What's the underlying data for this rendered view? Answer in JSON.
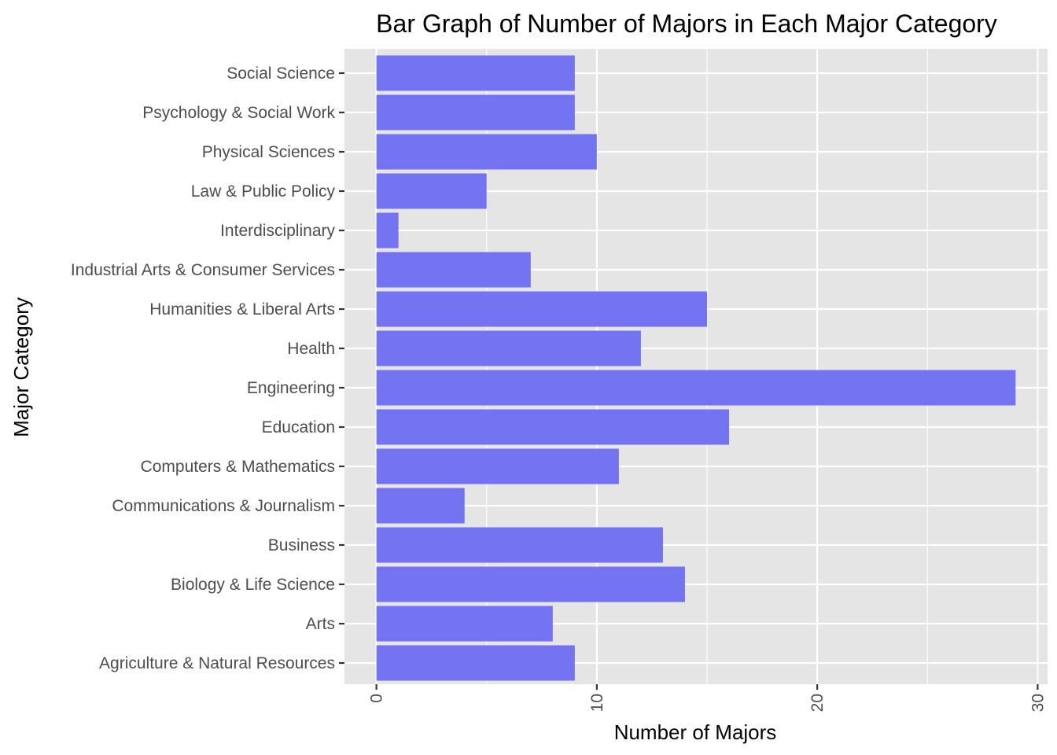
{
  "chart_data": {
    "type": "bar",
    "orientation": "horizontal",
    "title": "Bar Graph of Number of Majors in Each Major Category",
    "xlabel": "Number of Majors",
    "ylabel": "Major Category",
    "categories": [
      "Agriculture & Natural Resources",
      "Arts",
      "Biology & Life Science",
      "Business",
      "Communications & Journalism",
      "Computers & Mathematics",
      "Education",
      "Engineering",
      "Health",
      "Humanities & Liberal Arts",
      "Industrial Arts & Consumer Services",
      "Interdisciplinary",
      "Law & Public Policy",
      "Physical Sciences",
      "Psychology & Social Work",
      "Social Science"
    ],
    "values": [
      9,
      8,
      14,
      13,
      4,
      11,
      16,
      29,
      12,
      15,
      7,
      1,
      5,
      10,
      9,
      9
    ],
    "xlim": [
      -1.45,
      30.45
    ],
    "xticks": [
      0,
      10,
      20,
      30
    ],
    "x_minor_ticks": [
      5,
      15,
      25
    ],
    "xtick_labels": [
      "0",
      "10",
      "20",
      "30"
    ],
    "xtick_rotation": "vertical",
    "grid": true,
    "legend": "none",
    "colors": {
      "bar": "#7474f3",
      "panel_background": "#e5e5e5",
      "grid": "#ffffff",
      "tick": "#333333",
      "tick_label": "#4d4d4d"
    }
  }
}
